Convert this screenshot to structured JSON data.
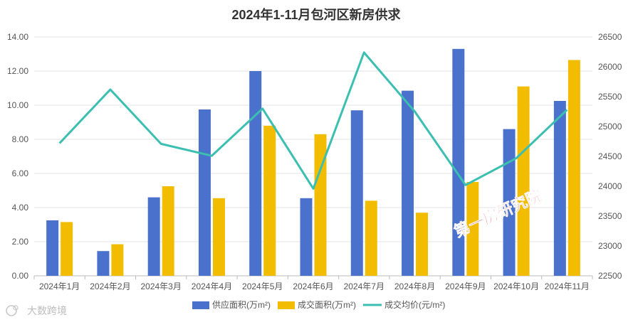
{
  "watermark": {
    "logo_text": "大数跨境"
  },
  "stamp": {
    "text": "第一房研究院",
    "color": "#e8232b"
  },
  "chart_data": {
    "type": "bar",
    "title": "2024年1-11月包河区新房供求",
    "categories": [
      "2024年1月",
      "2024年2月",
      "2024年3月",
      "2024年4月",
      "2024年5月",
      "2024年6月",
      "2024年7月",
      "2024年8月",
      "2024年9月",
      "2024年10月",
      "2024年11月"
    ],
    "y_left": {
      "min": 0,
      "max": 14,
      "step": 2,
      "tick_labels": [
        "0.00",
        "2.00",
        "4.00",
        "6.00",
        "8.00",
        "10.00",
        "12.00",
        "14.00"
      ]
    },
    "y_right": {
      "min": 22500,
      "max": 26500,
      "step": 500,
      "tick_labels": [
        "22500",
        "23000",
        "23500",
        "24000",
        "24500",
        "25000",
        "25500",
        "26000",
        "26500"
      ]
    },
    "grid": true,
    "legend_position": "bottom",
    "series": [
      {
        "name": "供应面积(万m²)",
        "type": "bar",
        "axis": "left",
        "color": "#4a72cc",
        "values": [
          3.25,
          1.45,
          4.6,
          9.75,
          12.0,
          4.55,
          9.7,
          10.85,
          13.3,
          8.6,
          10.25
        ]
      },
      {
        "name": "成交面积(万m²)",
        "type": "bar",
        "axis": "left",
        "color": "#f2bc00",
        "values": [
          3.15,
          1.85,
          5.25,
          4.55,
          8.8,
          8.3,
          4.4,
          3.7,
          5.5,
          11.1,
          12.65
        ]
      },
      {
        "name": "成交均价(元/m²)",
        "type": "line",
        "axis": "right",
        "color": "#3bbfb0",
        "values": [
          24720,
          25620,
          24710,
          24510,
          25300,
          23960,
          26240,
          25250,
          24020,
          24470,
          25280
        ]
      }
    ]
  }
}
